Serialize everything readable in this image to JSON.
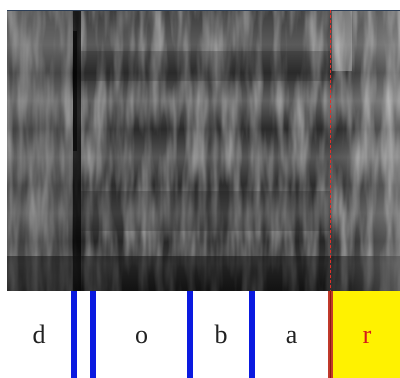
{
  "tier": {
    "segments": [
      {
        "label": "d",
        "selected": false
      },
      {
        "label": "o",
        "selected": false
      },
      {
        "label": "b",
        "selected": false
      },
      {
        "label": "a",
        "selected": false
      },
      {
        "label": "r",
        "selected": true
      }
    ]
  },
  "colors": {
    "boundary": "#0a1ae0",
    "selected_boundary": "#c0392b",
    "selected_fill": "#fff200",
    "selected_text": "#d61a1a",
    "cursor": "#e0302a"
  }
}
